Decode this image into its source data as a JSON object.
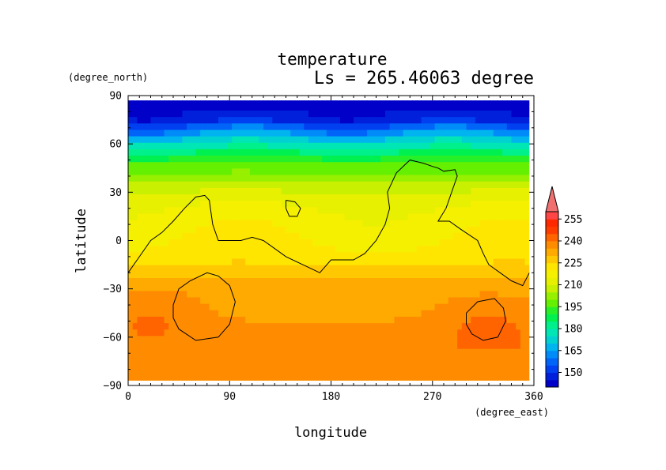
{
  "chart_data": {
    "type": "heatmap",
    "title": "temperature",
    "subtitle": "Ls = 265.46063 degree",
    "xlabel": "longitude",
    "ylabel": "latitude",
    "xunits": "(degree_east)",
    "yunits": "(degree_north)",
    "xlim": [
      0,
      360
    ],
    "ylim": [
      -90,
      90
    ],
    "xticks": [
      0,
      90,
      180,
      270,
      360
    ],
    "yticks": [
      -90,
      -60,
      -30,
      0,
      30,
      60,
      90
    ],
    "xtick_labels": [
      "0",
      "90",
      "180",
      "270",
      "360"
    ],
    "ytick_labels": [
      "−90",
      "−60",
      "−30",
      "0",
      "30",
      "60",
      "90"
    ],
    "data_lat_range": [
      -87,
      87
    ],
    "data_lon_range": [
      0,
      356
    ],
    "colorbar": {
      "levels": [
        140,
        145,
        150,
        155,
        160,
        165,
        170,
        175,
        180,
        185,
        190,
        195,
        200,
        205,
        210,
        215,
        220,
        225,
        230,
        235,
        240,
        245,
        250,
        255,
        260
      ],
      "labels": [
        "150",
        "165",
        "180",
        "195",
        "210",
        "225",
        "240",
        "255"
      ],
      "label_values": [
        150,
        165,
        180,
        195,
        210,
        225,
        240,
        255
      ],
      "colors": [
        "#0000c8",
        "#0020dc",
        "#0040f0",
        "#0064f8",
        "#008cf8",
        "#00b4f0",
        "#00d2d2",
        "#00e6b4",
        "#00f08c",
        "#00f050",
        "#28f028",
        "#64f000",
        "#96f000",
        "#c8f000",
        "#e6f000",
        "#f5f000",
        "#ffe600",
        "#ffc800",
        "#ffaa00",
        "#ff8c00",
        "#ff6400",
        "#ff3c00",
        "#ff2800",
        "#ff4646"
      ],
      "extend_max_color": "#f07070"
    },
    "temperature_profile_by_latitude": [
      {
        "lat": 85,
        "temp": 142
      },
      {
        "lat": 75,
        "temp": 148
      },
      {
        "lat": 65,
        "temp": 168
      },
      {
        "lat": 55,
        "temp": 185
      },
      {
        "lat": 45,
        "temp": 198
      },
      {
        "lat": 35,
        "temp": 207
      },
      {
        "lat": 25,
        "temp": 213
      },
      {
        "lat": 15,
        "temp": 217
      },
      {
        "lat": 5,
        "temp": 219
      },
      {
        "lat": -5,
        "temp": 221
      },
      {
        "lat": -15,
        "temp": 225
      },
      {
        "lat": -25,
        "temp": 231
      },
      {
        "lat": -35,
        "temp": 233
      },
      {
        "lat": -45,
        "temp": 234
      },
      {
        "lat": -55,
        "temp": 236
      },
      {
        "lat": -65,
        "temp": 238
      },
      {
        "lat": -75,
        "temp": 238
      },
      {
        "lat": -85,
        "temp": 235
      }
    ],
    "warm_regions": [
      {
        "lon": 20,
        "lat": -45,
        "temp": 240
      },
      {
        "lon": 320,
        "lat": -50,
        "temp": 241
      }
    ],
    "topography_contours": [
      {
        "name": "continent-outline",
        "points": [
          [
            0,
            -20
          ],
          [
            10,
            -10
          ],
          [
            20,
            0
          ],
          [
            30,
            5
          ],
          [
            40,
            12
          ],
          [
            50,
            20
          ],
          [
            60,
            27
          ],
          [
            68,
            28
          ],
          [
            72,
            25
          ],
          [
            75,
            10
          ],
          [
            80,
            0
          ],
          [
            90,
            0
          ],
          [
            100,
            0
          ],
          [
            110,
            2
          ],
          [
            120,
            0
          ],
          [
            130,
            -5
          ],
          [
            140,
            -10
          ],
          [
            155,
            -15
          ],
          [
            170,
            -20
          ],
          [
            180,
            -12
          ],
          [
            200,
            -12
          ],
          [
            210,
            -8
          ],
          [
            220,
            0
          ],
          [
            228,
            10
          ],
          [
            232,
            20
          ],
          [
            230,
            30
          ],
          [
            238,
            42
          ],
          [
            250,
            50
          ],
          [
            262,
            48
          ],
          [
            270,
            46
          ],
          [
            275,
            45
          ],
          [
            280,
            43
          ],
          [
            290,
            44
          ],
          [
            292,
            40
          ],
          [
            282,
            20
          ],
          [
            275,
            12
          ],
          [
            285,
            12
          ],
          [
            295,
            7
          ],
          [
            310,
            0
          ],
          [
            315,
            -8
          ],
          [
            320,
            -15
          ],
          [
            330,
            -20
          ],
          [
            340,
            -25
          ],
          [
            350,
            -28
          ],
          [
            356,
            -20
          ]
        ]
      },
      {
        "name": "small-island",
        "points": [
          [
            140,
            25
          ],
          [
            148,
            24
          ],
          [
            153,
            20
          ],
          [
            150,
            15
          ],
          [
            143,
            15
          ],
          [
            140,
            20
          ],
          [
            140,
            25
          ]
        ]
      },
      {
        "name": "hellas-basin",
        "points": [
          [
            40,
            -40
          ],
          [
            45,
            -30
          ],
          [
            55,
            -25
          ],
          [
            70,
            -20
          ],
          [
            80,
            -22
          ],
          [
            90,
            -28
          ],
          [
            95,
            -38
          ],
          [
            90,
            -52
          ],
          [
            80,
            -60
          ],
          [
            60,
            -62
          ],
          [
            45,
            -55
          ],
          [
            40,
            -48
          ],
          [
            40,
            -40
          ]
        ]
      },
      {
        "name": "argyre-basin",
        "points": [
          [
            300,
            -45
          ],
          [
            310,
            -38
          ],
          [
            325,
            -36
          ],
          [
            333,
            -42
          ],
          [
            335,
            -50
          ],
          [
            328,
            -60
          ],
          [
            315,
            -62
          ],
          [
            305,
            -58
          ],
          [
            300,
            -52
          ],
          [
            300,
            -45
          ]
        ]
      }
    ]
  }
}
